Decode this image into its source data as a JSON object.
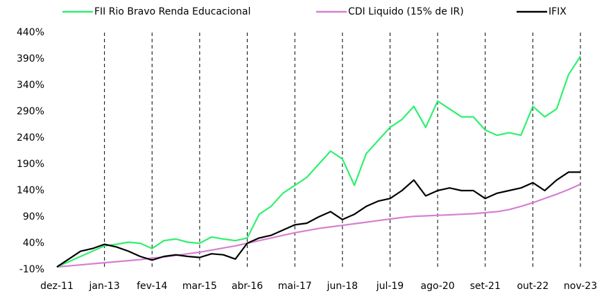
{
  "chart_data": {
    "type": "line",
    "categories": [
      "dez-11",
      null,
      null,
      null,
      "jan-13",
      null,
      null,
      null,
      "fev-14",
      null,
      null,
      null,
      "mar-15",
      null,
      null,
      null,
      "abr-16",
      null,
      null,
      null,
      "mai-17",
      null,
      null,
      null,
      "jun-18",
      null,
      null,
      null,
      "jul-19",
      null,
      null,
      null,
      "ago-20",
      null,
      null,
      null,
      "set-21",
      null,
      null,
      null,
      "out-22",
      null,
      null,
      null,
      "nov-23"
    ],
    "series": [
      {
        "name": "FII Rio Bravo Renda Educacional",
        "color": "#2ef06e",
        "values": [
          -5,
          5,
          15,
          25,
          35,
          38,
          42,
          40,
          30,
          45,
          48,
          42,
          40,
          52,
          48,
          45,
          50,
          95,
          110,
          135,
          150,
          165,
          190,
          215,
          200,
          150,
          210,
          235,
          260,
          275,
          300,
          260,
          310,
          295,
          280,
          280,
          255,
          245,
          250,
          245,
          300,
          280,
          295,
          360,
          395
        ]
      },
      {
        "name": "CDI Liquido (15% de IR)",
        "color": "#d77fd0",
        "values": [
          -5,
          -3,
          -1,
          1,
          3,
          5,
          7,
          9,
          12,
          14,
          17,
          20,
          23,
          27,
          31,
          35,
          40,
          45,
          50,
          55,
          60,
          64,
          68,
          71,
          74,
          77,
          80,
          83,
          86,
          89,
          91,
          92,
          93,
          94,
          95,
          96,
          98,
          100,
          104,
          110,
          117,
          125,
          133,
          142,
          152
        ]
      },
      {
        "name": "IFIX",
        "color": "#000000",
        "values": [
          -5,
          10,
          25,
          30,
          38,
          33,
          25,
          15,
          8,
          15,
          18,
          15,
          13,
          20,
          18,
          10,
          40,
          50,
          55,
          65,
          75,
          78,
          90,
          100,
          85,
          95,
          110,
          120,
          125,
          140,
          160,
          130,
          140,
          145,
          140,
          140,
          125,
          135,
          140,
          145,
          155,
          140,
          160,
          175,
          175
        ]
      }
    ],
    "ylim": [
      -10,
      440
    ],
    "yticks": [
      {
        "value": -10,
        "label": "-10%"
      },
      {
        "value": 40,
        "label": "40%"
      },
      {
        "value": 90,
        "label": "90%"
      },
      {
        "value": 140,
        "label": "140%"
      },
      {
        "value": 190,
        "label": "190%"
      },
      {
        "value": 240,
        "label": "240%"
      },
      {
        "value": 290,
        "label": "290%"
      },
      {
        "value": 340,
        "label": "340%"
      },
      {
        "value": 390,
        "label": "390%"
      },
      {
        "value": 440,
        "label": "440%"
      }
    ],
    "grid": false,
    "legend": "top"
  }
}
